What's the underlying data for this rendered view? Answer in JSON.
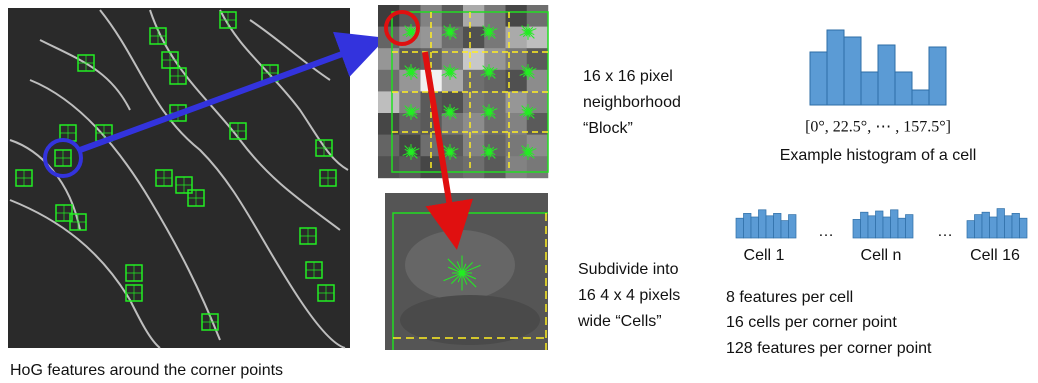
{
  "left_caption": "HoG features around the corner points",
  "block_label": {
    "lines": [
      "16 x 16 pixel",
      "neighborhood",
      "“Block”"
    ]
  },
  "cells_label": {
    "lines": [
      "Subdivide into",
      "16 4 x 4 pixels",
      "wide “Cells”"
    ]
  },
  "histogram": {
    "axis_label": "[0°, 22.5°, ⋯ , 157.5°]",
    "caption": "Example histogram of a cell"
  },
  "cells": [
    "Cell 1",
    "Cell n",
    "Cell 16"
  ],
  "separators": [
    "…",
    "…"
  ],
  "features": [
    "8 features per cell",
    "16 cells per corner point",
    "128 features per corner point"
  ]
}
